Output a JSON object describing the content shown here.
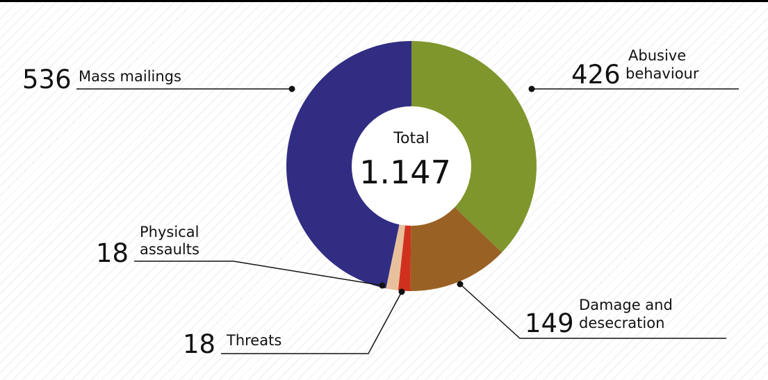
{
  "chart_data": {
    "type": "pie",
    "variant": "donut",
    "center": {
      "label": "Total",
      "value": "1.147"
    },
    "series": [
      {
        "name": "Abusive behaviour",
        "value": 426,
        "value_label": "426",
        "label_lines": [
          "Abusive",
          "behaviour"
        ],
        "color": "#7f962d"
      },
      {
        "name": "Damage and desecration",
        "value": 149,
        "value_label": "149",
        "label_lines": [
          "Damage and",
          "desecration"
        ],
        "color": "#996124"
      },
      {
        "name": "Threats",
        "value": 18,
        "value_label": "18",
        "label_lines": [
          "Threats"
        ],
        "color": "#d0311f"
      },
      {
        "name": "Physical assaults",
        "value": 18,
        "value_label": "18",
        "label_lines": [
          "Physical",
          "assaults"
        ],
        "color": "#e8c09c"
      },
      {
        "name": "Mass mailings",
        "value": 536,
        "value_label": "536",
        "label_lines": [
          "Mass mailings"
        ],
        "color": "#312d83"
      }
    ]
  }
}
